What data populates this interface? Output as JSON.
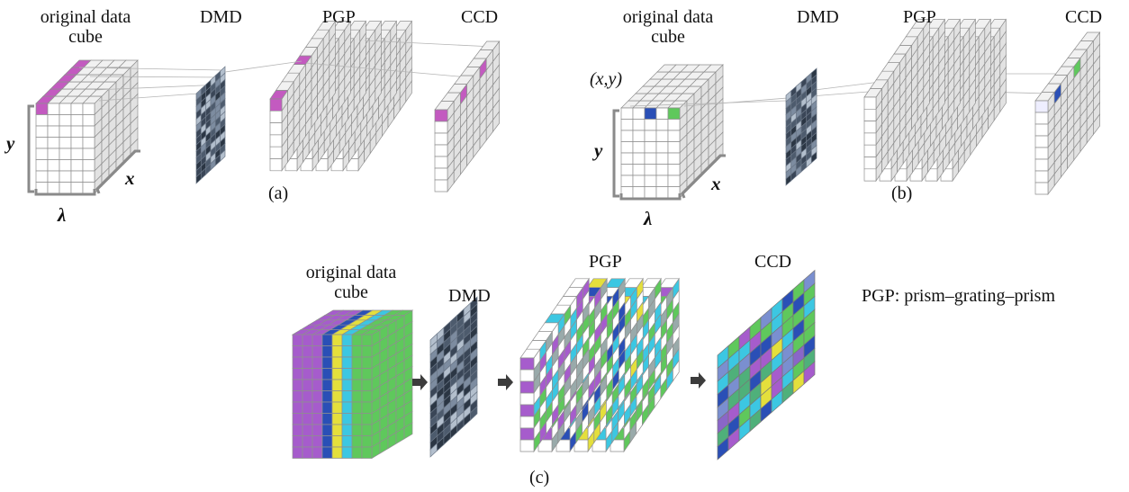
{
  "panels": [
    {
      "caption": "(a)",
      "cube_label": "original data cube",
      "dmd_label": "DMD",
      "pgp_label": "PGP",
      "ccd_label": "CCD",
      "axis_y": "y",
      "axis_x": "x",
      "axis_lambda": "λ"
    },
    {
      "caption": "(b)",
      "cube_label": "original data cube",
      "dmd_label": "DMD",
      "pgp_label": "PGP",
      "ccd_label": "CCD",
      "point_label": "(x,y)",
      "axis_y": "y",
      "axis_x": "x",
      "axis_lambda": "λ"
    },
    {
      "caption": "(c)",
      "cube_label": "original data cube",
      "dmd_label": "DMD",
      "pgp_label": "PGP",
      "ccd_label": "CCD"
    }
  ],
  "legend_note": "PGP: prism–grating–prism"
}
